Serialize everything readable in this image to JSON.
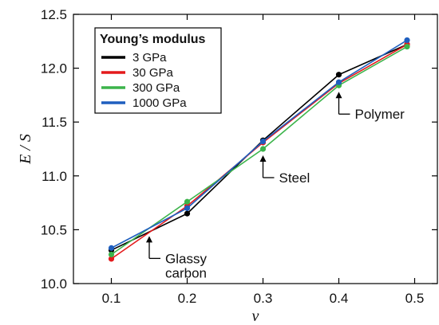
{
  "chart_data": {
    "type": "line",
    "xlabel": "ν",
    "ylabel": "E / S",
    "xlim": [
      0.05,
      0.53
    ],
    "ylim": [
      10.0,
      12.5
    ],
    "xticks": [
      "0.1",
      "0.2",
      "0.3",
      "0.4",
      "0.5"
    ],
    "yticks": [
      "10.0",
      "10.5",
      "11.0",
      "11.5",
      "12.0",
      "12.5"
    ],
    "grid": false,
    "legend": {
      "title": "Young’s modulus",
      "position": "top-left"
    },
    "x": [
      0.1,
      0.2,
      0.3,
      0.4,
      0.49
    ],
    "series": [
      {
        "name": "3 GPa",
        "color": "#000000",
        "values": [
          10.31,
          10.65,
          11.33,
          11.94,
          12.22
        ]
      },
      {
        "name": "30 GPa",
        "color": "#e41a1c",
        "values": [
          10.23,
          10.72,
          11.31,
          11.86,
          12.22
        ]
      },
      {
        "name": "300 GPa",
        "color": "#3cb44b",
        "values": [
          10.27,
          10.76,
          11.25,
          11.84,
          12.2
        ]
      },
      {
        "name": "1000 GPa",
        "color": "#1f5fbf",
        "values": [
          10.33,
          10.7,
          11.32,
          11.87,
          12.26
        ]
      }
    ],
    "annotations": [
      {
        "text": [
          "Glassy",
          "carbon"
        ],
        "at_x": 0.15,
        "at_y": 10.5
      },
      {
        "text": [
          "Steel"
        ],
        "at_x": 0.3,
        "at_y": 11.25
      },
      {
        "text": [
          "Polymer"
        ],
        "at_x": 0.4,
        "at_y": 11.84
      }
    ]
  }
}
